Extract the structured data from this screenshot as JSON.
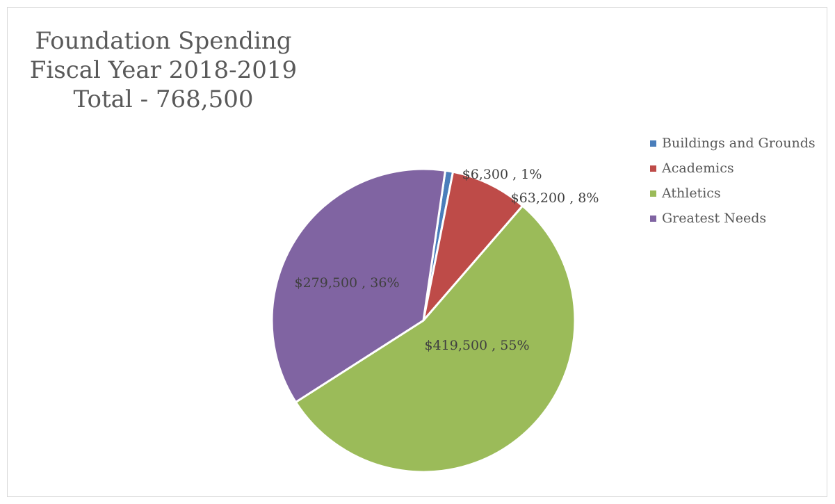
{
  "chart_data": {
    "type": "pie",
    "title": [
      "Foundation Spending",
      "Fiscal Year 2018-2019",
      "Total - 768,500"
    ],
    "legend_position": "right",
    "slices": [
      {
        "label": "Buildings and Grounds",
        "value": 6300,
        "data_label": "$6,300 , 1%",
        "color": "#4a7ebb"
      },
      {
        "label": "Academics",
        "value": 63200,
        "data_label": "$63,200 , 8%",
        "color": "#be4b48"
      },
      {
        "label": "Athletics",
        "value": 419500,
        "data_label": "$419,500 , 55%",
        "color": "#9bbb59"
      },
      {
        "label": "Greatest Needs",
        "value": 279500,
        "data_label": "$279,500 , 36%",
        "color": "#8064a2"
      }
    ]
  }
}
